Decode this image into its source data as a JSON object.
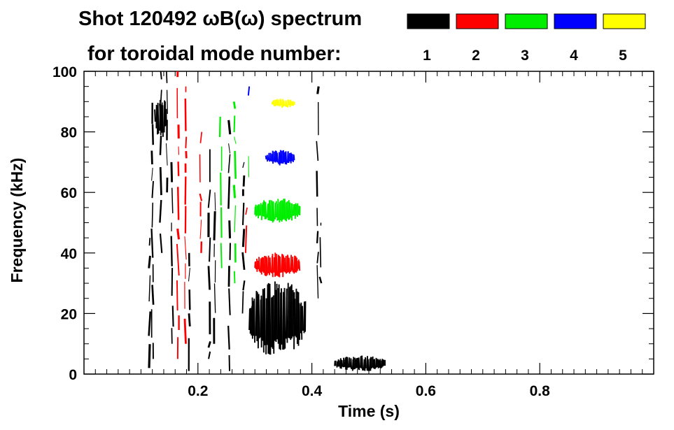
{
  "chart_data": {
    "type": "heatmap",
    "title_line1": "Shot 120492 ωB(ω) spectrum",
    "title_line2": "for toroidal mode number:",
    "xlabel": "Time (s)",
    "ylabel": "Frequency (kHz)",
    "xlim": [
      0.0,
      1.0
    ],
    "ylim": [
      0,
      100
    ],
    "x_ticks": [
      "0.2",
      "0.4",
      "0.6",
      "0.8"
    ],
    "y_ticks": [
      "0",
      "20",
      "40",
      "60",
      "80",
      "100"
    ],
    "legend": [
      {
        "name": "1",
        "color": "#000000"
      },
      {
        "name": "2",
        "color": "#ff0000"
      },
      {
        "name": "3",
        "color": "#00ee00"
      },
      {
        "name": "4",
        "color": "#0000ff"
      },
      {
        "name": "5",
        "color": "#ffff00"
      }
    ],
    "regions": [
      {
        "mode": 1,
        "t": [
          0.29,
          0.39
        ],
        "f": [
          6,
          31
        ]
      },
      {
        "mode": 2,
        "t": [
          0.3,
          0.38
        ],
        "f": [
          32,
          40
        ]
      },
      {
        "mode": 3,
        "t": [
          0.3,
          0.38
        ],
        "f": [
          50,
          58
        ]
      },
      {
        "mode": 4,
        "t": [
          0.32,
          0.37
        ],
        "f": [
          69,
          74
        ]
      },
      {
        "mode": 5,
        "t": [
          0.33,
          0.37
        ],
        "f": [
          88,
          91
        ]
      },
      {
        "mode": 1,
        "t": [
          0.125,
          0.145
        ],
        "f": [
          78,
          92
        ]
      },
      {
        "mode": 1,
        "t": [
          0.44,
          0.53
        ],
        "f": [
          1,
          6
        ]
      }
    ],
    "streaks": [
      {
        "mode": 1,
        "t": 0.115,
        "f": [
          2,
          45
        ]
      },
      {
        "mode": 1,
        "t": 0.12,
        "f": [
          5,
          90
        ]
      },
      {
        "mode": 1,
        "t": 0.135,
        "f": [
          40,
          100
        ]
      },
      {
        "mode": 1,
        "t": 0.145,
        "f": [
          60,
          100
        ]
      },
      {
        "mode": 1,
        "t": 0.155,
        "f": [
          10,
          70
        ]
      },
      {
        "mode": 1,
        "t": 0.185,
        "f": [
          1,
          40
        ]
      },
      {
        "mode": 2,
        "t": 0.165,
        "f": [
          5,
          100
        ]
      },
      {
        "mode": 2,
        "t": 0.178,
        "f": [
          10,
          95
        ]
      },
      {
        "mode": 1,
        "t": 0.22,
        "f": [
          5,
          75
        ]
      },
      {
        "mode": 1,
        "t": 0.23,
        "f": [
          10,
          60
        ]
      },
      {
        "mode": 2,
        "t": 0.205,
        "f": [
          40,
          80
        ]
      },
      {
        "mode": 1,
        "t": 0.255,
        "f": [
          1,
          85
        ]
      },
      {
        "mode": 3,
        "t": 0.265,
        "f": [
          30,
          90
        ]
      },
      {
        "mode": 1,
        "t": 0.28,
        "f": [
          20,
          70
        ]
      },
      {
        "mode": 2,
        "t": 0.285,
        "f": [
          40,
          55
        ]
      },
      {
        "mode": 3,
        "t": 0.288,
        "f": [
          65,
          72
        ]
      },
      {
        "mode": 1,
        "t": 0.41,
        "f": [
          25,
          95
        ]
      },
      {
        "mode": 1,
        "t": 0.415,
        "f": [
          30,
          50
        ]
      },
      {
        "mode": 3,
        "t": 0.24,
        "f": [
          35,
          85
        ]
      },
      {
        "mode": 4,
        "t": 0.29,
        "f": [
          92,
          95
        ]
      }
    ]
  }
}
